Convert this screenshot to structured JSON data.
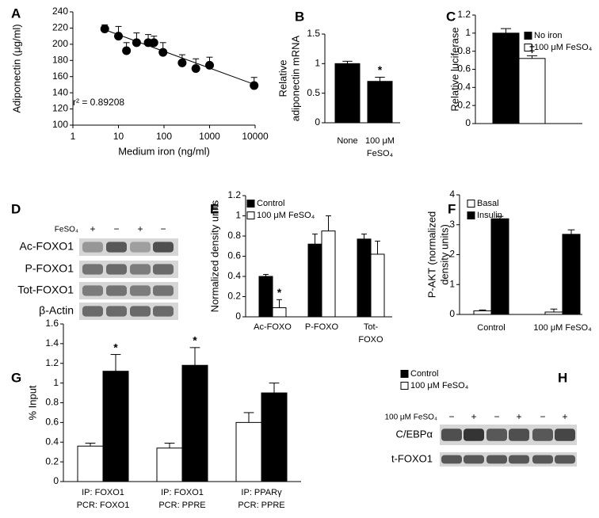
{
  "chart_data": [
    {
      "type": "scatter",
      "label": "A",
      "xlabel": "Medium iron (ng/ml)",
      "ylabel": "Adiponectin (μg/ml)",
      "log_x": true,
      "xlim": [
        1,
        10000
      ],
      "xticks": [
        1,
        10,
        100,
        1000,
        10000
      ],
      "ylim": [
        100,
        240
      ],
      "yticks": [
        100,
        120,
        140,
        160,
        180,
        200,
        220,
        240
      ],
      "x": [
        5,
        10,
        15,
        25,
        45,
        60,
        95,
        250,
        500,
        1000,
        9500
      ],
      "values": [
        219,
        210,
        192,
        202,
        202,
        202,
        190,
        177,
        170,
        174,
        149
      ],
      "errors": [
        5,
        12,
        10,
        12,
        10,
        8,
        12,
        10,
        12,
        10,
        10
      ],
      "color": "#000000",
      "trendline": {
        "x": [
          5,
          10000
        ],
        "values": [
          218,
          150
        ]
      },
      "annotations": [
        {
          "text": "r² = 0.89208"
        }
      ]
    },
    {
      "type": "bar",
      "label": "B",
      "ylabel": [
        "Relative",
        "adiponectin mRNA"
      ],
      "categories": [
        "None",
        [
          "100 μM",
          "FeSO₄"
        ]
      ],
      "values": [
        1.0,
        0.7
      ],
      "errors": [
        0.04,
        0.07
      ],
      "color": "#000000",
      "ylim": [
        0,
        1.5
      ],
      "yticks": [
        0,
        0.5,
        1,
        1.5
      ],
      "annotations": [
        {
          "text": "*",
          "index": 1
        }
      ]
    },
    {
      "type": "bar",
      "label": "C",
      "ylabel": "Relative luciferase",
      "ylim": [
        0,
        1.2
      ],
      "yticks": [
        0,
        0.2,
        0.4,
        0.6,
        0.8,
        1,
        1.2
      ],
      "series": [
        {
          "name": "No iron",
          "color": "#000000",
          "values": [
            1.0
          ],
          "errors": [
            0.05
          ]
        },
        {
          "name": "100 μM FeSO₄",
          "color": "#ffffff",
          "values": [
            0.72
          ],
          "errors": [
            0.03
          ]
        }
      ],
      "annotations": [
        {
          "text": "‡",
          "series": 1,
          "index": 0
        }
      ]
    },
    {
      "type": "bar",
      "label": "E",
      "ylabel": "Normalized density units",
      "categories": [
        "Ac-FOXO",
        "P-FOXO",
        [
          "Tot-",
          "FOXO"
        ]
      ],
      "ylim": [
        0,
        1.2
      ],
      "yticks": [
        0,
        0.2,
        0.4,
        0.6,
        0.8,
        1,
        1.2
      ],
      "series": [
        {
          "name": "Control",
          "color": "#000000",
          "values": [
            0.4,
            0.72,
            0.77
          ],
          "errors": [
            0.02,
            0.1,
            0.05
          ]
        },
        {
          "name": "100 μM FeSO₄",
          "color": "#ffffff",
          "values": [
            0.09,
            0.85,
            0.62
          ],
          "errors": [
            0.08,
            0.15,
            0.13
          ]
        }
      ],
      "annotations": [
        {
          "text": "*",
          "series": 1,
          "index": 0
        }
      ]
    },
    {
      "type": "bar",
      "label": "F",
      "ylabel": [
        "P-AKT (normalized",
        "density units)"
      ],
      "categories": [
        "Control",
        "100 μM FeSO₄"
      ],
      "ylim": [
        0,
        4
      ],
      "yticks": [
        0,
        1,
        2,
        3,
        4
      ],
      "series": [
        {
          "name": "Basal",
          "color": "#ffffff",
          "values": [
            0.12,
            0.08
          ],
          "errors": [
            0.03,
            0.1
          ]
        },
        {
          "name": "Insulin",
          "color": "#000000",
          "values": [
            3.2,
            2.68
          ],
          "errors": [
            0.08,
            0.15
          ]
        }
      ]
    },
    {
      "type": "bar",
      "label": "G",
      "ylabel": "% Input",
      "categories": [
        [
          "IP: FOXO1",
          "PCR: FOXO1"
        ],
        [
          "IP: FOXO1",
          "PCR: PPRE"
        ],
        [
          "IP: PPARγ",
          "PCR: PPRE"
        ]
      ],
      "ylim": [
        0,
        1.6
      ],
      "yticks": [
        0,
        0.2,
        0.4,
        0.6,
        0.8,
        1,
        1.2,
        1.4,
        1.6
      ],
      "series": [
        {
          "name": "Control",
          "color": "#000000",
          "values": [
            1.12,
            1.18,
            0.9
          ],
          "errors": [
            0.17,
            0.18,
            0.1
          ]
        },
        {
          "name": "100 μM FeSO₄",
          "color": "#ffffff",
          "values": [
            0.36,
            0.34,
            0.6
          ],
          "errors": [
            0.03,
            0.05,
            0.1
          ]
        }
      ],
      "annotations": [
        {
          "text": "*",
          "series": 0,
          "index": 0
        },
        {
          "text": "*",
          "series": 0,
          "index": 1
        }
      ]
    }
  ],
  "blots": [
    {
      "label": "D",
      "treatment": "FeSO₄",
      "lanes": [
        "+",
        "−",
        "+",
        "−"
      ],
      "rows": [
        "Ac-FOXO1",
        "P-FOXO1",
        "Tot-FOXO1",
        "β-Actin"
      ]
    },
    {
      "label": "H",
      "treatment": "100 μM FeSO₄",
      "lanes": [
        "−",
        "+",
        "−",
        "+",
        "−",
        "+"
      ],
      "rows": [
        "C/EBPα",
        "t-FOXO1"
      ]
    }
  ]
}
